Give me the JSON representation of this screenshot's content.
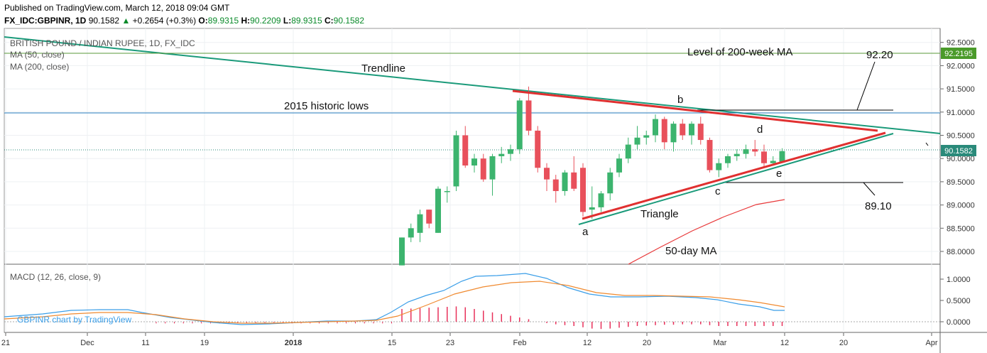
{
  "header": {
    "published": "Published on TradingView.com, March 12, 2018 09:04 GMT",
    "symbol_line": "FX_IDC:GBPINR, 1D",
    "last": "90.1582",
    "change": "+0.2654 (+0.3%)",
    "o_label": "O:",
    "o_val": "89.9315",
    "h_label": "H:",
    "h_val": "90.2209",
    "l_label": "L:",
    "l_val": "89.9315",
    "c_label": "C:",
    "c_val": "90.1582"
  },
  "legend": {
    "title": "BRITISH POUND / INDIAN RUPEE, 1D, FX_IDC",
    "ma50": "MA (50, close)",
    "ma200": "MA (200, close)",
    "macd": "MACD (12, 26, close, 9)",
    "watermark": "GBPINR chart by TradingView"
  },
  "annotations": {
    "trendline": "Trendline",
    "historic_lows": "2015 historic lows",
    "level_200w": "Level of 200-week MA",
    "target_up": "92.20",
    "target_down": "89.10",
    "triangle": "Triangle",
    "ma50_label": "50-day MA",
    "a": "a",
    "b": "b",
    "c": "c",
    "d": "d",
    "e": "e"
  },
  "price_badges": {
    "ma200_badge": "92.2195",
    "last_badge": "90.1582"
  },
  "colors": {
    "bull": "#3cb46e",
    "bear": "#e8505b",
    "trendline": "#1a9a7a",
    "hline": "#2a7fc0",
    "ma200": "#5a9a3a",
    "ma50": "#e8393a",
    "triangle": "#e03030",
    "macd": "#3a9ee8",
    "signal": "#f08a30",
    "hist": "#e8305a",
    "badge_green": "#4a9a2a",
    "badge_teal": "#2a8a7a"
  },
  "chart_data": {
    "type": "candlestick",
    "price_axis": {
      "min": 87.8,
      "max": 92.7,
      "ticks": [
        "92.5000",
        "92.0000",
        "91.5000",
        "91.0000",
        "90.5000",
        "90.0000",
        "89.5000",
        "89.0000",
        "88.5000",
        "88.0000"
      ]
    },
    "macd_axis": {
      "min": -0.25,
      "max": 1.25,
      "ticks": [
        "1.0000",
        "0.5000",
        "0.0000"
      ]
    },
    "x_ticks": [
      "21",
      "Dec",
      "11",
      "19",
      "2018",
      "15",
      "23",
      "Feb",
      "12",
      "20",
      "Mar",
      "12",
      "20",
      "Apr"
    ],
    "candles": [
      {
        "o": 87.7,
        "h": 88.3,
        "l": 87.7,
        "c": 88.3
      },
      {
        "o": 88.3,
        "h": 88.6,
        "l": 88.2,
        "c": 88.5
      },
      {
        "o": 88.4,
        "h": 88.9,
        "l": 88.2,
        "c": 88.8
      },
      {
        "o": 88.9,
        "h": 88.9,
        "l": 88.5,
        "c": 88.6
      },
      {
        "o": 88.4,
        "h": 89.4,
        "l": 88.4,
        "c": 89.35
      },
      {
        "o": 89.3,
        "h": 89.4,
        "l": 89.05,
        "c": 89.3
      },
      {
        "o": 89.4,
        "h": 90.6,
        "l": 89.3,
        "c": 90.5
      },
      {
        "o": 90.5,
        "h": 90.7,
        "l": 89.8,
        "c": 89.85
      },
      {
        "o": 89.85,
        "h": 90.1,
        "l": 89.7,
        "c": 90.0
      },
      {
        "o": 90.0,
        "h": 90.1,
        "l": 89.5,
        "c": 89.55
      },
      {
        "o": 89.55,
        "h": 90.1,
        "l": 89.2,
        "c": 90.05
      },
      {
        "o": 90.05,
        "h": 90.25,
        "l": 89.9,
        "c": 90.1
      },
      {
        "o": 90.1,
        "h": 90.3,
        "l": 89.95,
        "c": 90.2
      },
      {
        "o": 90.2,
        "h": 91.3,
        "l": 90.1,
        "c": 91.25
      },
      {
        "o": 91.25,
        "h": 91.55,
        "l": 90.5,
        "c": 90.6
      },
      {
        "o": 90.6,
        "h": 90.7,
        "l": 89.7,
        "c": 89.8
      },
      {
        "o": 89.8,
        "h": 89.9,
        "l": 89.3,
        "c": 89.55
      },
      {
        "o": 89.55,
        "h": 89.65,
        "l": 89.05,
        "c": 89.3
      },
      {
        "o": 89.3,
        "h": 89.75,
        "l": 89.2,
        "c": 89.7
      },
      {
        "o": 89.7,
        "h": 90.05,
        "l": 89.3,
        "c": 89.35
      },
      {
        "o": 89.8,
        "h": 89.9,
        "l": 88.75,
        "c": 88.85
      },
      {
        "o": 88.9,
        "h": 89.4,
        "l": 88.7,
        "c": 88.95
      },
      {
        "o": 88.95,
        "h": 89.3,
        "l": 88.85,
        "c": 89.25
      },
      {
        "o": 89.25,
        "h": 89.8,
        "l": 89.1,
        "c": 89.7
      },
      {
        "o": 89.7,
        "h": 90.1,
        "l": 89.6,
        "c": 90.0
      },
      {
        "o": 90.0,
        "h": 90.45,
        "l": 89.9,
        "c": 90.3
      },
      {
        "o": 90.3,
        "h": 90.7,
        "l": 90.2,
        "c": 90.45
      },
      {
        "o": 90.45,
        "h": 90.6,
        "l": 90.3,
        "c": 90.5
      },
      {
        "o": 90.5,
        "h": 90.95,
        "l": 90.35,
        "c": 90.85
      },
      {
        "o": 90.85,
        "h": 90.9,
        "l": 90.2,
        "c": 90.35
      },
      {
        "o": 90.35,
        "h": 90.8,
        "l": 90.15,
        "c": 90.75
      },
      {
        "o": 90.75,
        "h": 90.85,
        "l": 90.4,
        "c": 90.5
      },
      {
        "o": 90.5,
        "h": 90.8,
        "l": 90.3,
        "c": 90.75
      },
      {
        "o": 90.75,
        "h": 90.9,
        "l": 90.3,
        "c": 90.4
      },
      {
        "o": 90.4,
        "h": 90.45,
        "l": 89.7,
        "c": 89.75
      },
      {
        "o": 89.75,
        "h": 90.0,
        "l": 89.6,
        "c": 89.9
      },
      {
        "o": 89.9,
        "h": 90.1,
        "l": 89.8,
        "c": 90.05
      },
      {
        "o": 90.05,
        "h": 90.2,
        "l": 89.95,
        "c": 90.1
      },
      {
        "o": 90.1,
        "h": 90.3,
        "l": 90.0,
        "c": 90.2
      },
      {
        "o": 90.2,
        "h": 90.4,
        "l": 90.05,
        "c": 90.15
      },
      {
        "o": 90.15,
        "h": 90.3,
        "l": 89.8,
        "c": 89.9
      },
      {
        "o": 89.9,
        "h": 90.05,
        "l": 89.85,
        "c": 89.95
      },
      {
        "o": 89.93,
        "h": 90.22,
        "l": 89.93,
        "c": 90.16
      }
    ],
    "hist": [
      0.3,
      0.31,
      0.32,
      0.33,
      0.34,
      0.35,
      0.36,
      0.34,
      0.3,
      0.26,
      0.22,
      0.18,
      0.14,
      0.1,
      0.06,
      0.0,
      -0.03,
      -0.06,
      -0.08,
      -0.1,
      -0.13,
      -0.16,
      -0.17,
      -0.16,
      -0.14,
      -0.12,
      -0.1,
      -0.09,
      -0.08,
      -0.07,
      -0.07,
      -0.06,
      -0.06,
      -0.06,
      -0.08,
      -0.1,
      -0.1,
      -0.1,
      -0.1,
      -0.1,
      -0.1,
      -0.1,
      -0.1
    ]
  }
}
